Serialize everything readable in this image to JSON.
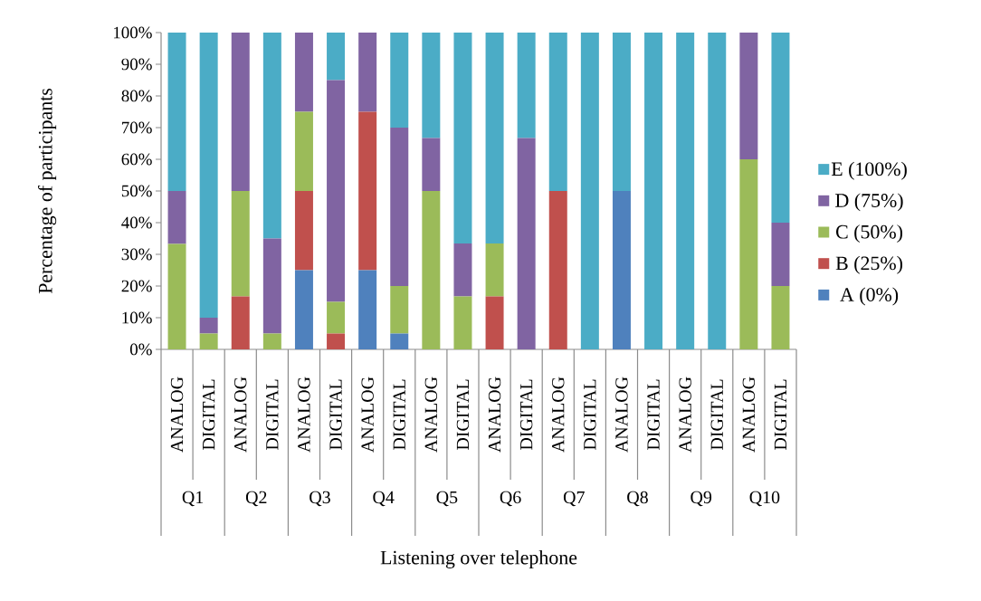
{
  "chart_data": {
    "type": "bar",
    "stacked": true,
    "xlabel": "Listening over telephone",
    "ylabel": "Percentage of participants",
    "categories": [
      "ANALOG",
      "DIGITAL",
      "ANALOG",
      "DIGITAL",
      "ANALOG",
      "DIGITAL",
      "ANALOG",
      "DIGITAL",
      "ANALOG",
      "DIGITAL",
      "ANALOG",
      "DIGITAL",
      "ANALOG",
      "DIGITAL",
      "ANALOG",
      "DIGITAL",
      "ANALOG",
      "DIGITAL",
      "ANALOG",
      "DIGITAL"
    ],
    "annotations": [
      "Q1",
      "Q2",
      "Q3",
      "Q4",
      "Q5",
      "Q6",
      "Q7",
      "Q8",
      "Q9",
      "Q10"
    ],
    "series": [
      {
        "name": "A (0%)",
        "color": "#4f81bd",
        "values": [
          0,
          0,
          0,
          0,
          25,
          0,
          25,
          5,
          0,
          0,
          0,
          0,
          0,
          0,
          50,
          0,
          0,
          0,
          0,
          0
        ]
      },
      {
        "name": "B (25%)",
        "color": "#c0504d",
        "values": [
          0,
          0,
          16.7,
          0,
          25,
          5,
          50,
          0,
          0,
          0,
          16.7,
          0,
          50,
          0,
          0,
          0,
          0,
          0,
          0,
          0
        ]
      },
      {
        "name": "C (50%)",
        "color": "#9bbb59",
        "values": [
          33.3,
          5,
          33.3,
          5,
          25,
          10,
          0,
          15,
          50,
          16.7,
          16.7,
          0,
          0,
          0,
          0,
          0,
          0,
          0,
          60,
          20
        ]
      },
      {
        "name": "D (75%)",
        "color": "#8064a2",
        "values": [
          16.7,
          5,
          50,
          30,
          25,
          70,
          25,
          50,
          16.7,
          16.7,
          0,
          66.7,
          0,
          0,
          0,
          0,
          0,
          0,
          40,
          20
        ]
      },
      {
        "name": "E (100%)",
        "color": "#4bacc6",
        "values": [
          50,
          90,
          0,
          65,
          0,
          15,
          0,
          30,
          33.3,
          66.6,
          66.6,
          33.3,
          50,
          100,
          50,
          100,
          100,
          100,
          0,
          60
        ]
      }
    ],
    "ylim": [
      0,
      100
    ],
    "yticks": [
      {
        "value": 0,
        "label": "0%"
      },
      {
        "value": 10,
        "label": "10%"
      },
      {
        "value": 20,
        "label": "20%"
      },
      {
        "value": 30,
        "label": "30%"
      },
      {
        "value": 40,
        "label": "40%"
      },
      {
        "value": 50,
        "label": "50%"
      },
      {
        "value": 60,
        "label": "60%"
      },
      {
        "value": 70,
        "label": "70%"
      },
      {
        "value": 80,
        "label": "80%"
      },
      {
        "value": 90,
        "label": "90%"
      },
      {
        "value": 100,
        "label": "100%"
      }
    ],
    "legend": "right"
  }
}
